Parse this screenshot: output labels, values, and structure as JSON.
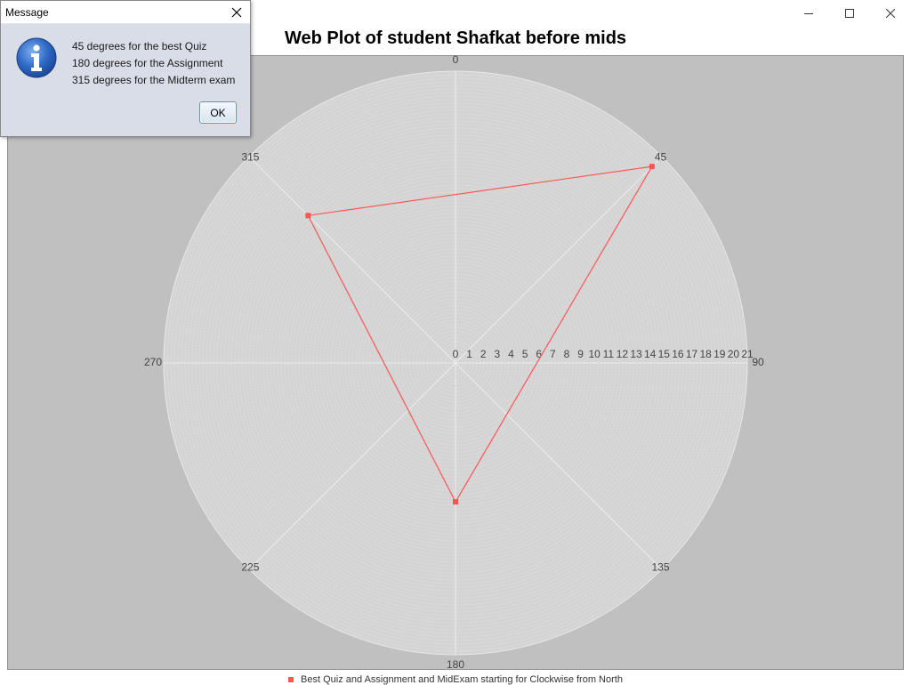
{
  "dialog": {
    "title": "Message",
    "lines": [
      "45 degrees for the best Quiz",
      "180 degrees for the Assignment",
      "315 degrees for the Midterm exam"
    ],
    "ok_label": "OK"
  },
  "colors": {
    "plot_background": "#c0c0c0",
    "grid": "#e2e2e2",
    "series": "#ff5555"
  },
  "chart_data": {
    "type": "polar",
    "title": "Web Plot of student Shafkat before mids",
    "angle_direction": "clockwise",
    "angle_zero": "north",
    "angle_ticks": [
      "0",
      "45",
      "90",
      "135",
      "180",
      "225",
      "270",
      "315"
    ],
    "radial_ticks": [
      "0",
      "1",
      "2",
      "3",
      "4",
      "5",
      "6",
      "7",
      "8",
      "9",
      "10",
      "11",
      "12",
      "13",
      "14",
      "15",
      "16",
      "17",
      "18",
      "19",
      "20",
      "21"
    ],
    "radial_range": [
      0,
      21
    ],
    "grid": true,
    "legend_position": "bottom",
    "series": [
      {
        "name": "Best Quiz and Assignment and MidExam starting for Clockwise from North",
        "closed": true,
        "points": [
          {
            "angle": 45,
            "r": 20
          },
          {
            "angle": 180,
            "r": 10
          },
          {
            "angle": 315,
            "r": 15
          }
        ]
      }
    ]
  }
}
